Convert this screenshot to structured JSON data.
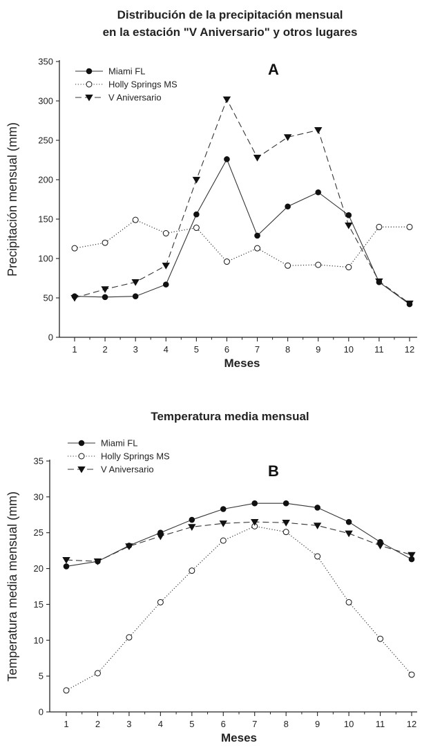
{
  "chart_data": [
    {
      "type": "line",
      "title_line1": "Distribución de la precipitación mensual",
      "title_line2": "en la estación \"V Aniversario\" y otros lugares",
      "panel_label": "A",
      "xlabel": "Meses",
      "ylabel": "Precipitación mensual (mm)",
      "ylim": [
        0,
        350
      ],
      "yticks": [
        0,
        50,
        100,
        150,
        200,
        250,
        300,
        350
      ],
      "x": [
        1,
        2,
        3,
        4,
        5,
        6,
        7,
        8,
        9,
        10,
        11,
        12
      ],
      "legend_position": "top-left",
      "series": [
        {
          "name": "Miami FL",
          "marker": "filled-circle",
          "line": "solid",
          "values": [
            52,
            51,
            52,
            67,
            156,
            226,
            129,
            166,
            184,
            155,
            70,
            42
          ]
        },
        {
          "name": "Holly Springs MS",
          "marker": "open-circle",
          "line": "dotted",
          "values": [
            113,
            120,
            149,
            132,
            139,
            96,
            113,
            91,
            92,
            89,
            140,
            140
          ]
        },
        {
          "name": "V Aniversario",
          "marker": "filled-triangle-down",
          "line": "dashed",
          "values": [
            50,
            61,
            70,
            91,
            200,
            302,
            228,
            254,
            263,
            142,
            71,
            43
          ]
        }
      ]
    },
    {
      "type": "line",
      "title": "Temperatura media mensual",
      "panel_label": "B",
      "xlabel": "Meses",
      "ylabel": "Temperatura media mensual (mm)",
      "ylim": [
        0,
        35
      ],
      "yticks": [
        0,
        5,
        10,
        15,
        20,
        25,
        30,
        35
      ],
      "x": [
        1,
        2,
        3,
        4,
        5,
        6,
        7,
        8,
        9,
        10,
        11,
        12
      ],
      "legend_position": "top-left",
      "series": [
        {
          "name": "Miami FL",
          "marker": "filled-circle",
          "line": "solid",
          "values": [
            20.3,
            21.0,
            23.2,
            25.0,
            26.8,
            28.3,
            29.1,
            29.1,
            28.5,
            26.5,
            23.7,
            21.3
          ]
        },
        {
          "name": "Holly Springs MS",
          "marker": "open-circle",
          "line": "dotted",
          "values": [
            3.0,
            5.4,
            10.4,
            15.3,
            19.7,
            23.9,
            25.9,
            25.1,
            21.7,
            15.3,
            10.2,
            5.2
          ]
        },
        {
          "name": "V Aniversario",
          "marker": "filled-triangle-down",
          "line": "dashed",
          "values": [
            21.2,
            21.0,
            23.1,
            24.5,
            25.8,
            26.3,
            26.5,
            26.4,
            26.0,
            24.9,
            23.2,
            21.9
          ]
        }
      ]
    }
  ]
}
